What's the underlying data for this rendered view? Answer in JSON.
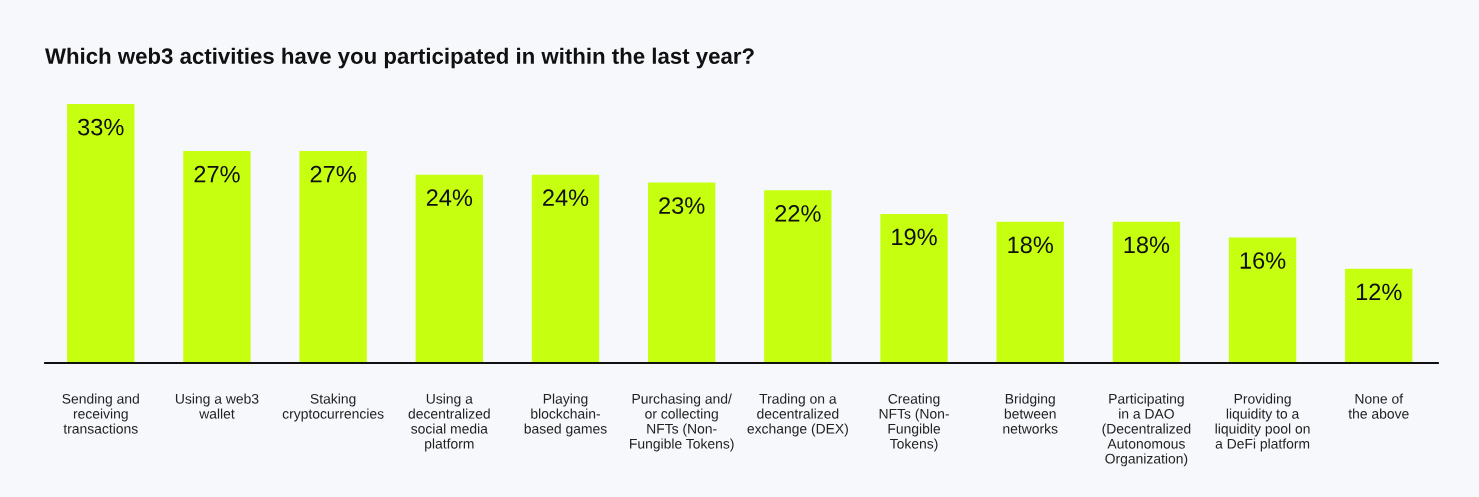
{
  "chart_data": {
    "type": "bar",
    "title": "Which web3 activities have you participated in within the last year?",
    "categories": [
      "Sending and\nreceiving\ntransactions",
      "Using a web3\nwallet",
      "Staking\ncryptocurrencies",
      "Using a\ndecentralized\nsocial media\nplatform",
      "Playing\nblockchain-\nbased games",
      "Purchasing and/\nor collecting\nNFTs (Non-\nFungible Tokens)",
      "Trading on a\ndecentralized\nexchange (DEX)",
      "Creating\nNFTs (Non-\nFungible\nTokens)",
      "Bridging\nbetween\nnetworks",
      "Participating\nin a DAO\n(Decentralized\nAutonomous\nOrganization)",
      "Providing\nliquidity to a\nliquidity pool on\na DeFi platform",
      "None of\nthe above"
    ],
    "values": [
      33,
      27,
      27,
      24,
      24,
      23,
      22,
      19,
      18,
      18,
      16,
      12
    ],
    "value_labels": [
      "33%",
      "27%",
      "27%",
      "24%",
      "24%",
      "23%",
      "22%",
      "19%",
      "18%",
      "18%",
      "16%",
      "12%"
    ],
    "color": "#c6ff0f",
    "grid": false,
    "legend": false
  }
}
